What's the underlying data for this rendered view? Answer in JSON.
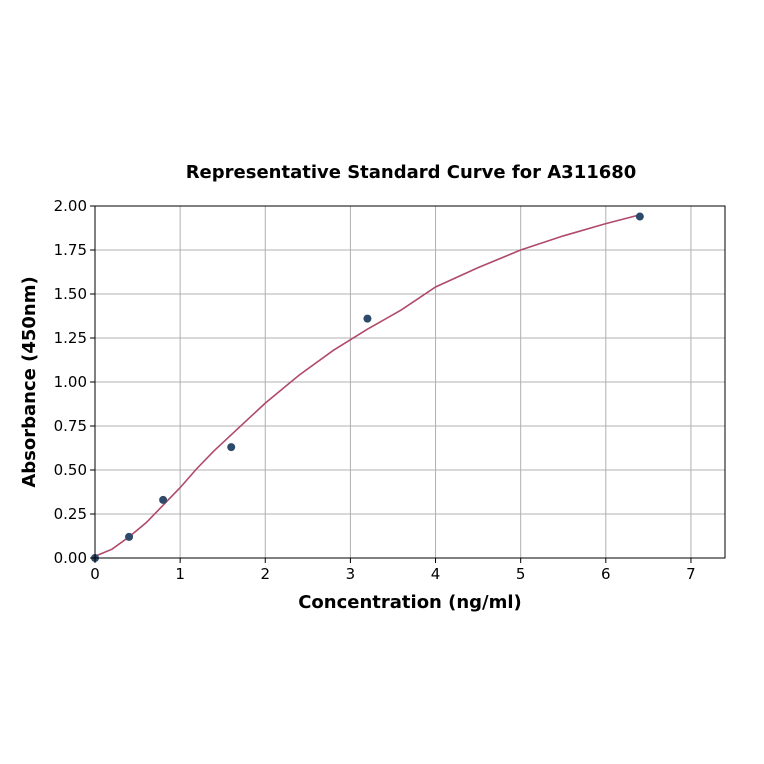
{
  "chart_data": {
    "type": "scatter",
    "title": "Representative Standard Curve for A311680",
    "xlabel": "Concentration (ng/ml)",
    "ylabel": "Absorbance (450nm)",
    "xlim": [
      0,
      7.4
    ],
    "ylim": [
      0,
      2.0
    ],
    "x_ticks": [
      "0",
      "1",
      "2",
      "3",
      "4",
      "5",
      "6",
      "7"
    ],
    "y_ticks": [
      "0.00",
      "0.25",
      "0.50",
      "0.75",
      "1.00",
      "1.25",
      "1.50",
      "1.75",
      "2.00"
    ],
    "grid": true,
    "series": [
      {
        "points": [
          {
            "x": 0,
            "y": 0.0
          },
          {
            "x": 0.4,
            "y": 0.12
          },
          {
            "x": 0.8,
            "y": 0.33
          },
          {
            "x": 1.6,
            "y": 0.63
          },
          {
            "x": 3.2,
            "y": 1.36
          },
          {
            "x": 6.4,
            "y": 1.94
          }
        ],
        "color": "#2e4a6b"
      }
    ],
    "fit_curve": {
      "color": "#b04a6a",
      "points": [
        {
          "x": 0.0,
          "y": 0.01
        },
        {
          "x": 0.2,
          "y": 0.05
        },
        {
          "x": 0.4,
          "y": 0.12
        },
        {
          "x": 0.6,
          "y": 0.2
        },
        {
          "x": 0.8,
          "y": 0.3
        },
        {
          "x": 1.0,
          "y": 0.4
        },
        {
          "x": 1.2,
          "y": 0.51
        },
        {
          "x": 1.4,
          "y": 0.61
        },
        {
          "x": 1.6,
          "y": 0.7
        },
        {
          "x": 1.8,
          "y": 0.79
        },
        {
          "x": 2.0,
          "y": 0.88
        },
        {
          "x": 2.4,
          "y": 1.04
        },
        {
          "x": 2.8,
          "y": 1.18
        },
        {
          "x": 3.2,
          "y": 1.3
        },
        {
          "x": 3.6,
          "y": 1.41
        },
        {
          "x": 4.0,
          "y": 1.54
        },
        {
          "x": 4.5,
          "y": 1.65
        },
        {
          "x": 5.0,
          "y": 1.75
        },
        {
          "x": 5.5,
          "y": 1.83
        },
        {
          "x": 6.0,
          "y": 1.9
        },
        {
          "x": 6.4,
          "y": 1.95
        }
      ]
    }
  }
}
